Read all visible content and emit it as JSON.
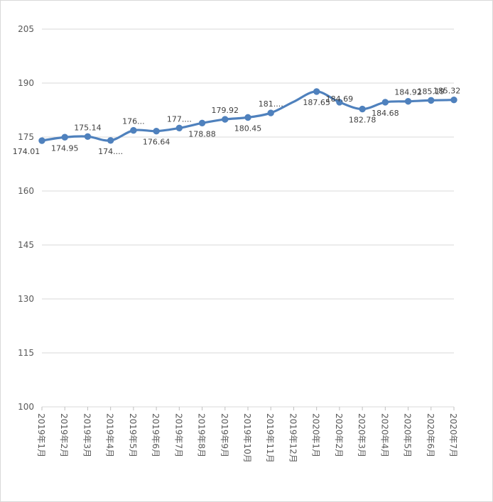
{
  "chart_data": {
    "type": "line",
    "title": "",
    "xlabel": "",
    "ylabel": "",
    "categories": [
      "2019年1月",
      "2019年2月",
      "2019年3月",
      "2019年4月",
      "2019年5月",
      "2019年6月",
      "2019年7月",
      "2019年8月",
      "2019年9月",
      "2019年10月",
      "2019年11月",
      "2019年12月",
      "2020年1月",
      "2020年2月",
      "2020年3月",
      "2020年4月",
      "2020年5月",
      "2020年6月",
      "2020年7月"
    ],
    "series": [
      {
        "values": [
          174.01,
          174.95,
          175.14,
          174.05,
          176.85,
          176.64,
          177.5,
          178.88,
          179.92,
          180.45,
          181.7,
          184.8,
          187.65,
          184.69,
          182.78,
          184.68,
          184.92,
          185.19,
          185.32
        ],
        "data_labels": [
          "174.01",
          "174.95",
          "175.14",
          "174....",
          "176...",
          "176.64",
          "177....",
          "178.88",
          "179.92",
          "180.45",
          "181....",
          "",
          "187.65",
          "184.69",
          "182.78",
          "184.68",
          "184.92",
          "185.19",
          "185.32"
        ],
        "color": "#4f81bd"
      }
    ],
    "yticks": [
      100,
      115,
      130,
      145,
      160,
      175,
      190,
      205
    ],
    "ylim": [
      100,
      205
    ],
    "grid": true,
    "smooth": true,
    "markers": true,
    "legend": "none"
  }
}
